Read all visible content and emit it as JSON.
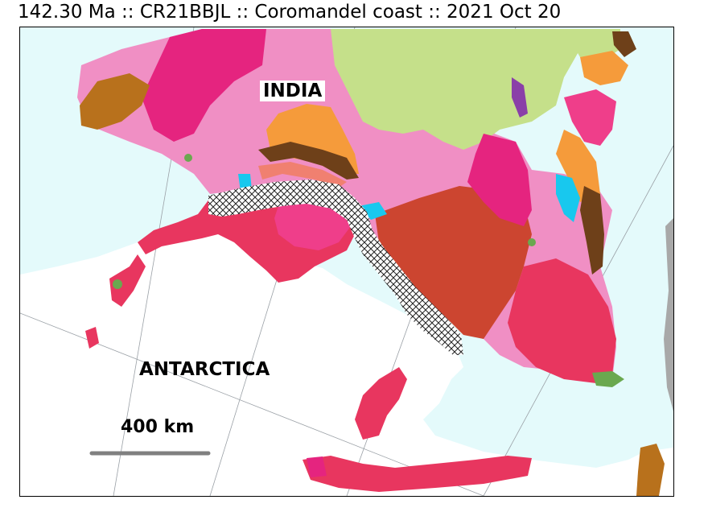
{
  "header": {
    "title": "142.30 Ma :: CR21BBJL :: Coromandel coast :: 2021 Oct 20"
  },
  "map": {
    "labels": {
      "india": "INDIA",
      "antarctica": "ANTARCTICA"
    },
    "scale_bar": {
      "label": "400 km",
      "color": "#808080"
    },
    "colors": {
      "ocean": "#e4fafb",
      "antarctica": "#ffffff",
      "precambrian_pink": "#f08fc4",
      "magenta": "#e5247f",
      "hot_pink": "#ef3e8a",
      "crimson": "#e8365f",
      "brick": "#cc4530",
      "orange": "#f59b3b",
      "brown": "#6e4019",
      "ochre": "#b8711c",
      "salmon": "#f08070",
      "lime": "#c5e08a",
      "cyan": "#18c8ee",
      "green": "#6aa84f",
      "purple": "#8a3fa8",
      "gray": "#a8a8a8",
      "rift": "#222222"
    }
  }
}
